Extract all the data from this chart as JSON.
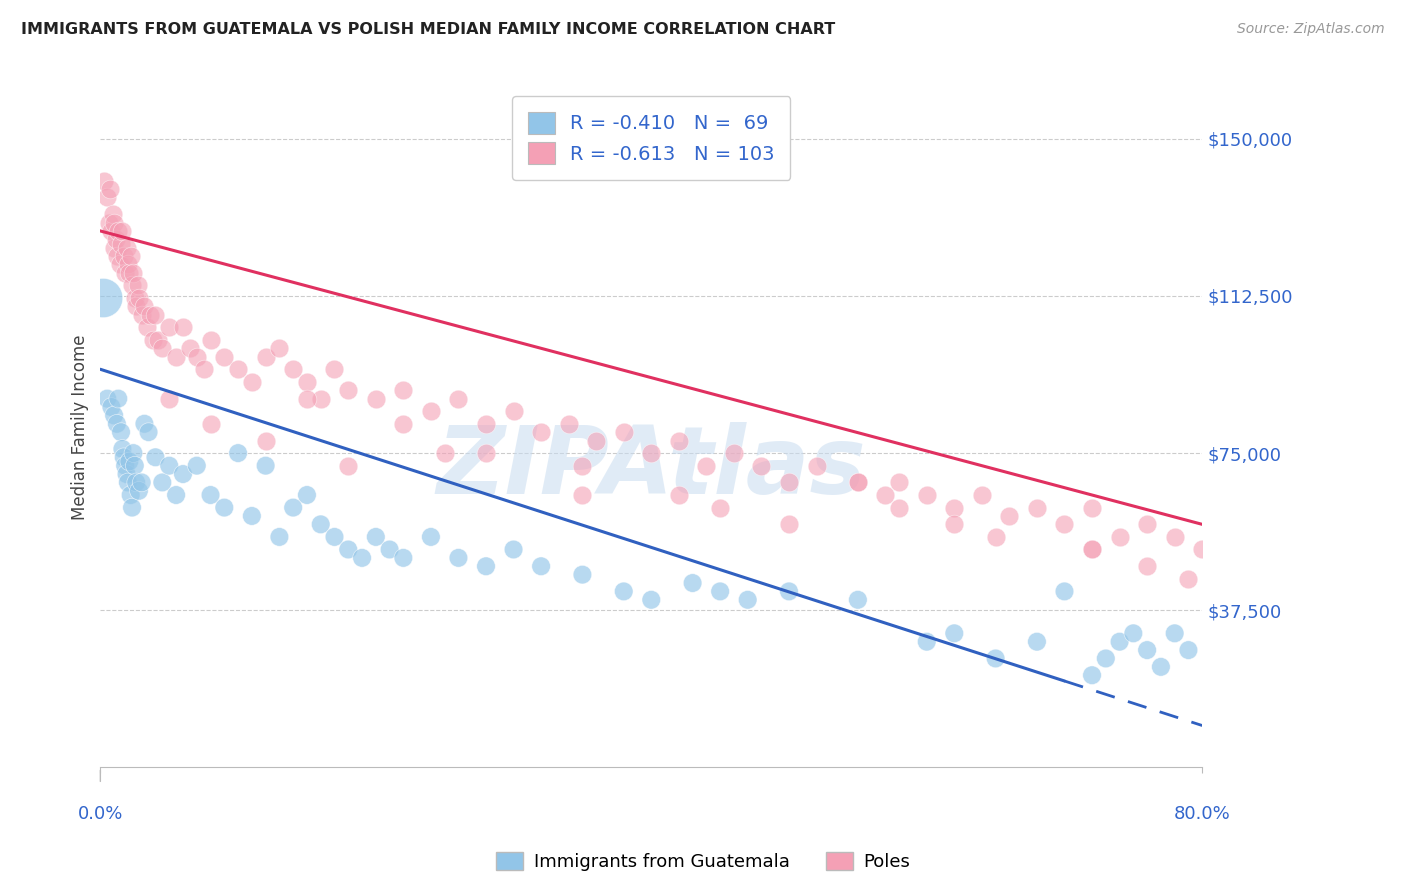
{
  "title": "IMMIGRANTS FROM GUATEMALA VS POLISH MEDIAN FAMILY INCOME CORRELATION CHART",
  "source": "Source: ZipAtlas.com",
  "ylabel": "Median Family Income",
  "xmin": 0.0,
  "xmax": 80.0,
  "ymin": 0,
  "ymax": 162500,
  "yticks": [
    0,
    37500,
    75000,
    112500,
    150000
  ],
  "ytick_labels": [
    "",
    "$37,500",
    "$75,000",
    "$112,500",
    "$150,000"
  ],
  "r_guatemala": -0.41,
  "n_guatemala": 69,
  "r_poles": -0.613,
  "n_poles": 103,
  "color_guatemala": "#92C5E8",
  "color_poles": "#F4A0B5",
  "color_line_guatemala": "#3060C0",
  "color_line_poles": "#E03060",
  "color_labels": "#3366CC",
  "watermark_color": "#C8DCF0",
  "legend_label_guatemala": "Immigrants from Guatemala",
  "legend_label_poles": "Poles",
  "blue_line_x0": 0.0,
  "blue_line_y0": 95000,
  "blue_line_x1": 80.0,
  "blue_line_y1": 10000,
  "blue_line_solid_end": 70.0,
  "pink_line_x0": 0.0,
  "pink_line_y0": 128000,
  "pink_line_x1": 80.0,
  "pink_line_y1": 58000,
  "guatemala_x": [
    0.2,
    0.5,
    0.8,
    1.0,
    1.2,
    1.3,
    1.5,
    1.6,
    1.7,
    1.8,
    1.9,
    2.0,
    2.1,
    2.2,
    2.3,
    2.4,
    2.5,
    2.6,
    2.8,
    3.0,
    3.2,
    3.5,
    4.0,
    4.5,
    5.0,
    5.5,
    6.0,
    7.0,
    8.0,
    9.0,
    10.0,
    11.0,
    12.0,
    13.0,
    14.0,
    15.0,
    16.0,
    17.0,
    18.0,
    19.0,
    20.0,
    21.0,
    22.0,
    24.0,
    26.0,
    28.0,
    30.0,
    32.0,
    35.0,
    38.0,
    40.0,
    43.0,
    45.0,
    47.0,
    50.0,
    55.0,
    60.0,
    62.0,
    65.0,
    68.0,
    70.0,
    72.0,
    73.0,
    74.0,
    75.0,
    76.0,
    77.0,
    78.0,
    79.0
  ],
  "guatemala_y": [
    112000,
    88000,
    86000,
    84000,
    82000,
    88000,
    80000,
    76000,
    74000,
    72000,
    70000,
    68000,
    73000,
    65000,
    62000,
    75000,
    72000,
    68000,
    66000,
    68000,
    82000,
    80000,
    74000,
    68000,
    72000,
    65000,
    70000,
    72000,
    65000,
    62000,
    75000,
    60000,
    72000,
    55000,
    62000,
    65000,
    58000,
    55000,
    52000,
    50000,
    55000,
    52000,
    50000,
    55000,
    50000,
    48000,
    52000,
    48000,
    46000,
    42000,
    40000,
    44000,
    42000,
    40000,
    42000,
    40000,
    30000,
    32000,
    26000,
    30000,
    42000,
    22000,
    26000,
    30000,
    32000,
    28000,
    24000,
    32000,
    28000
  ],
  "poles_x": [
    0.3,
    0.5,
    0.6,
    0.7,
    0.8,
    0.9,
    1.0,
    1.0,
    1.1,
    1.2,
    1.3,
    1.4,
    1.5,
    1.6,
    1.7,
    1.8,
    1.9,
    2.0,
    2.1,
    2.2,
    2.3,
    2.4,
    2.5,
    2.6,
    2.7,
    2.8,
    3.0,
    3.2,
    3.4,
    3.6,
    3.8,
    4.0,
    4.2,
    4.5,
    5.0,
    5.5,
    6.0,
    6.5,
    7.0,
    7.5,
    8.0,
    9.0,
    10.0,
    11.0,
    12.0,
    13.0,
    14.0,
    15.0,
    16.0,
    17.0,
    18.0,
    20.0,
    22.0,
    24.0,
    26.0,
    28.0,
    30.0,
    32.0,
    34.0,
    36.0,
    38.0,
    40.0,
    42.0,
    44.0,
    46.0,
    48.0,
    50.0,
    52.0,
    55.0,
    57.0,
    58.0,
    60.0,
    62.0,
    64.0,
    66.0,
    68.0,
    70.0,
    72.0,
    74.0,
    76.0,
    78.0,
    80.0,
    5.0,
    8.0,
    12.0,
    18.0,
    25.0,
    35.0,
    45.0,
    55.0,
    62.0,
    72.0,
    15.0,
    22.0,
    28.0,
    35.0,
    42.0,
    50.0,
    58.0,
    65.0,
    72.0,
    76.0,
    79.0
  ],
  "poles_y": [
    140000,
    136000,
    130000,
    138000,
    128000,
    132000,
    124000,
    130000,
    126000,
    122000,
    128000,
    120000,
    125000,
    128000,
    122000,
    118000,
    124000,
    120000,
    118000,
    122000,
    115000,
    118000,
    112000,
    110000,
    115000,
    112000,
    108000,
    110000,
    105000,
    108000,
    102000,
    108000,
    102000,
    100000,
    105000,
    98000,
    105000,
    100000,
    98000,
    95000,
    102000,
    98000,
    95000,
    92000,
    98000,
    100000,
    95000,
    92000,
    88000,
    95000,
    90000,
    88000,
    90000,
    85000,
    88000,
    82000,
    85000,
    80000,
    82000,
    78000,
    80000,
    75000,
    78000,
    72000,
    75000,
    72000,
    68000,
    72000,
    68000,
    65000,
    68000,
    65000,
    62000,
    65000,
    60000,
    62000,
    58000,
    62000,
    55000,
    58000,
    55000,
    52000,
    88000,
    82000,
    78000,
    72000,
    75000,
    65000,
    62000,
    68000,
    58000,
    52000,
    88000,
    82000,
    75000,
    72000,
    65000,
    58000,
    62000,
    55000,
    52000,
    48000,
    45000
  ]
}
